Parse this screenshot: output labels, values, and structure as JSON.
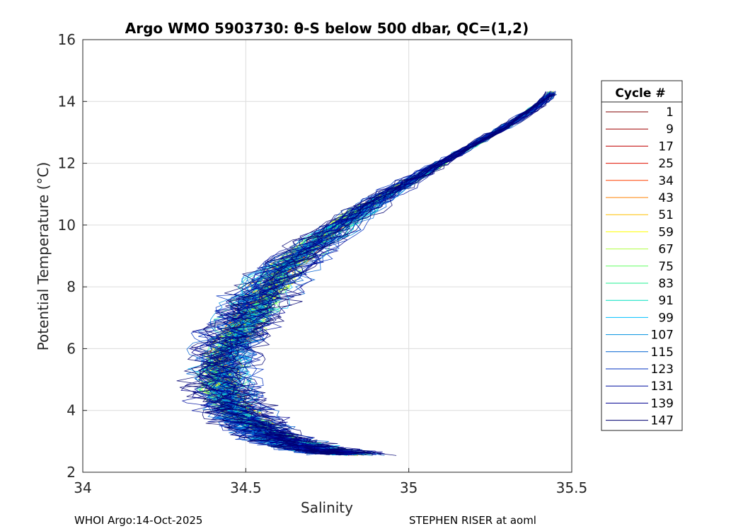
{
  "chart_data": {
    "type": "line",
    "title": "Argo WMO 5903730: θ-S below 500 dbar,  QC=(1,2)",
    "xlabel": "Salinity",
    "ylabel": "Potential Temperature (°C)",
    "xlim": [
      34,
      35.5
    ],
    "ylim": [
      2,
      16
    ],
    "xticks": [
      "34",
      "34.5",
      "35",
      "35.5"
    ],
    "yticks": [
      "2",
      "4",
      "6",
      "8",
      "10",
      "12",
      "14",
      "16"
    ],
    "grid": true,
    "legend": {
      "title": "Cycle #",
      "placement": "right-outside",
      "entries": [
        {
          "label": "1",
          "color": "#800000"
        },
        {
          "label": "9",
          "color": "#a00000"
        },
        {
          "label": "17",
          "color": "#c00000"
        },
        {
          "label": "25",
          "color": "#e01000"
        },
        {
          "label": "34",
          "color": "#ff4000"
        },
        {
          "label": "43",
          "color": "#ff8000"
        },
        {
          "label": "51",
          "color": "#ffc000"
        },
        {
          "label": "59",
          "color": "#ffff00"
        },
        {
          "label": "67",
          "color": "#b0ff40"
        },
        {
          "label": "75",
          "color": "#60ff60"
        },
        {
          "label": "83",
          "color": "#20f090"
        },
        {
          "label": "91",
          "color": "#00e0c0"
        },
        {
          "label": "99",
          "color": "#00c0ff"
        },
        {
          "label": "107",
          "color": "#0090e0"
        },
        {
          "label": "115",
          "color": "#0060d0"
        },
        {
          "label": "123",
          "color": "#0030c0"
        },
        {
          "label": "131",
          "color": "#0010a0"
        },
        {
          "label": "139",
          "color": "#000090"
        },
        {
          "label": "147",
          "color": "#000070"
        }
      ]
    },
    "profile_shape": {
      "salinity": [
        34.83,
        34.78,
        34.72,
        34.66,
        34.6,
        34.55,
        34.5,
        34.46,
        34.43,
        34.42,
        34.44,
        34.48,
        34.52,
        34.56,
        34.62,
        34.7,
        34.8,
        34.9,
        35.0,
        35.1,
        35.2,
        35.3,
        35.4,
        35.45
      ],
      "theta": [
        2.6,
        2.65,
        2.75,
        2.9,
        3.1,
        3.4,
        3.75,
        4.2,
        4.7,
        5.3,
        6.0,
        6.6,
        7.2,
        7.8,
        8.6,
        9.3,
        10.1,
        10.8,
        11.4,
        12.0,
        12.6,
        13.2,
        13.9,
        14.4
      ]
    }
  },
  "footer": {
    "left": "WHOI Argo:14-Oct-2025",
    "right": "STEPHEN RISER at aoml"
  }
}
